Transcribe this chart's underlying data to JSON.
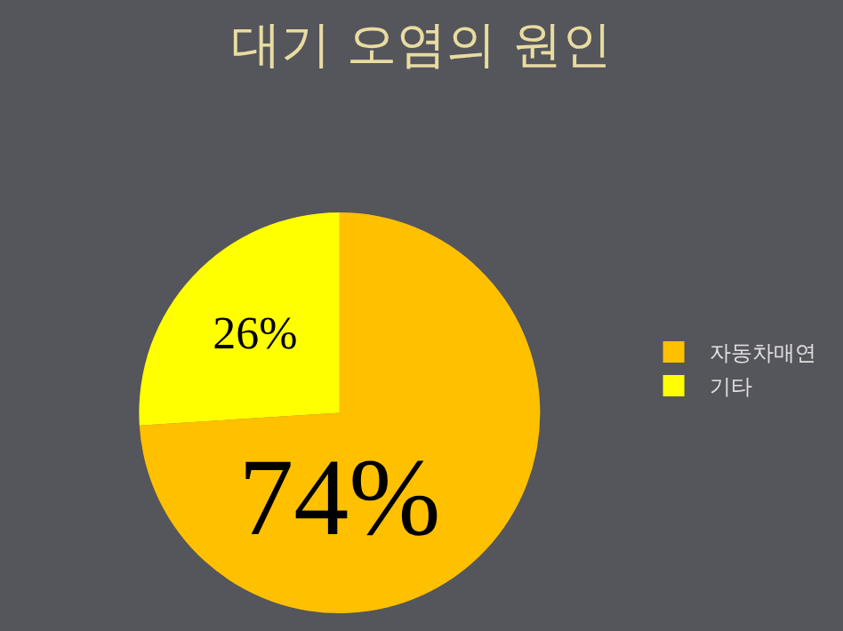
{
  "chart_data": {
    "type": "pie",
    "title": "대기 오염의 원인",
    "categories": [
      "자동차매연",
      "기타"
    ],
    "values": [
      74,
      26
    ],
    "colors": [
      "#ffc000",
      "#ffff00"
    ],
    "value_labels": [
      "74%",
      "26%"
    ],
    "legend": "right"
  }
}
